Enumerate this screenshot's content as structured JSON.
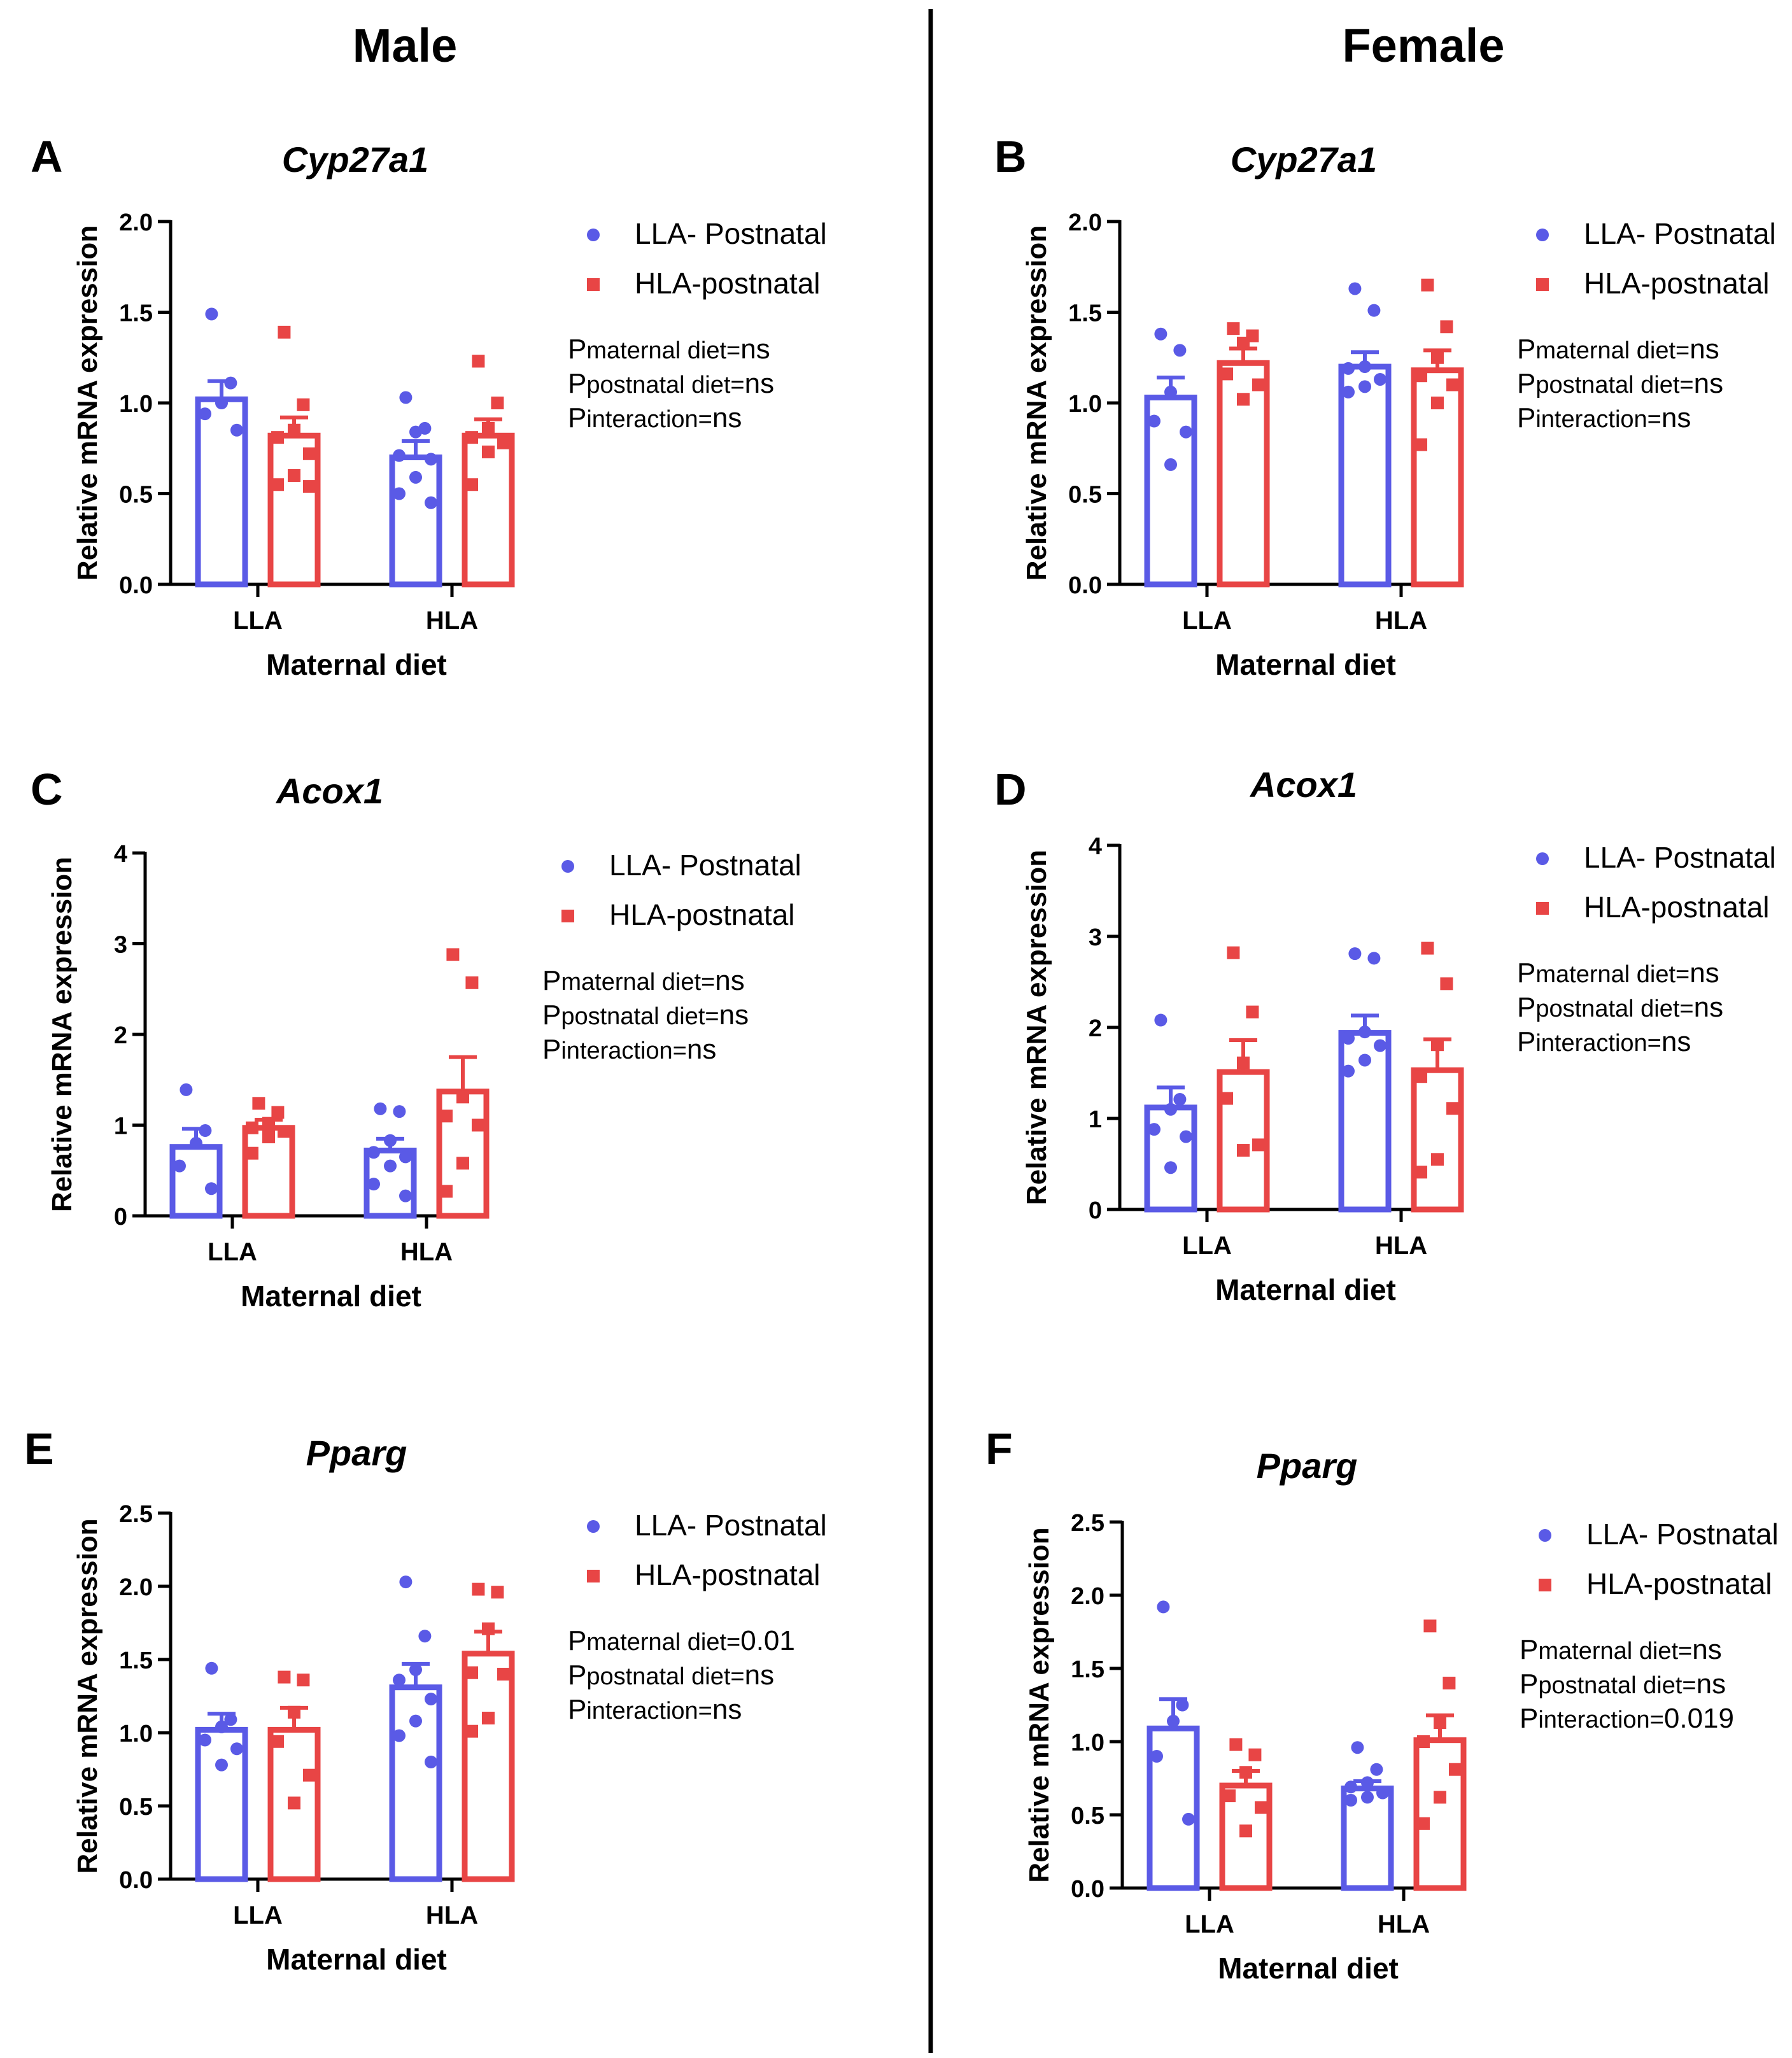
{
  "column_titles": {
    "male": "Male",
    "female": "Female"
  },
  "legend": {
    "series1": "LLA- Postnatal",
    "series2": "HLA-postnatal"
  },
  "colors": {
    "series1": "#5a5ae6",
    "series2": "#e84545",
    "axis": "#000000"
  },
  "chart_data": [
    {
      "panel": "A",
      "sex": "Male",
      "type": "bar",
      "title": "Cyp27a1",
      "xlabel": "Maternal diet",
      "ylabel": "Relative mRNA expression",
      "categories": [
        "LLA",
        "HLA"
      ],
      "ylim": [
        0,
        2.0
      ],
      "yticks": [
        "0.0",
        "0.5",
        "1.0",
        "1.5",
        "2.0"
      ],
      "series": [
        {
          "name": "LLA- Postnatal",
          "values": [
            1.02,
            0.7
          ],
          "sem": [
            0.1,
            0.09
          ],
          "points": [
            [
              1.49,
              1.11,
              1.0,
              0.94,
              0.85
            ],
            [
              1.03,
              0.86,
              0.84,
              0.71,
              0.69,
              0.59,
              0.5,
              0.45
            ]
          ]
        },
        {
          "name": "HLA-postnatal",
          "values": [
            0.82,
            0.82
          ],
          "sem": [
            0.1,
            0.09
          ],
          "points": [
            [
              1.39,
              0.99,
              0.85,
              0.81,
              0.72,
              0.6,
              0.55,
              0.54
            ],
            [
              1.23,
              1.0,
              0.86,
              0.81,
              0.78,
              0.73,
              0.55
            ]
          ]
        }
      ],
      "stats": [
        {
          "p": "P",
          "sub": "maternal diet=",
          "val": "ns"
        },
        {
          "p": "P",
          "sub": "postnatal diet=",
          "val": "ns"
        },
        {
          "p": "P",
          "sub": "interaction=",
          "val": "ns"
        }
      ]
    },
    {
      "panel": "B",
      "sex": "Female",
      "type": "bar",
      "title": "Cyp27a1",
      "xlabel": "Maternal diet",
      "ylabel": "Relative mRNA expression",
      "categories": [
        "LLA",
        "HLA"
      ],
      "ylim": [
        0,
        2.0
      ],
      "yticks": [
        "0.0",
        "0.5",
        "1.0",
        "1.5",
        "2.0"
      ],
      "series": [
        {
          "name": "LLA- Postnatal",
          "values": [
            1.03,
            1.2
          ],
          "sem": [
            0.11,
            0.08
          ],
          "points": [
            [
              1.38,
              1.29,
              1.06,
              0.9,
              0.84,
              0.66
            ],
            [
              1.63,
              1.51,
              1.2,
              1.19,
              1.13,
              1.09,
              1.06
            ]
          ]
        },
        {
          "name": "HLA-postnatal",
          "values": [
            1.22,
            1.18
          ],
          "sem": [
            0.08,
            0.11
          ],
          "points": [
            [
              1.41,
              1.37,
              1.33,
              1.16,
              1.1,
              1.02
            ],
            [
              1.65,
              1.42,
              1.25,
              1.15,
              1.1,
              1.0,
              0.77
            ]
          ]
        }
      ],
      "stats": [
        {
          "p": "P",
          "sub": "maternal diet=",
          "val": "ns"
        },
        {
          "p": "P",
          "sub": "postnatal diet=",
          "val": "ns"
        },
        {
          "p": "P",
          "sub": "interaction=",
          "val": "ns"
        }
      ]
    },
    {
      "panel": "C",
      "sex": "Male",
      "type": "bar",
      "title": "Acox1",
      "xlabel": "Maternal diet",
      "ylabel": "Relative mRNA expression",
      "categories": [
        "LLA",
        "HLA"
      ],
      "ylim": [
        0,
        4
      ],
      "yticks": [
        "0",
        "1",
        "2",
        "3",
        "4"
      ],
      "series": [
        {
          "name": "LLA- Postnatal",
          "values": [
            0.76,
            0.72
          ],
          "sem": [
            0.2,
            0.13
          ],
          "points": [
            [
              1.39,
              0.94,
              0.8,
              0.55,
              0.3
            ],
            [
              1.18,
              1.15,
              0.83,
              0.7,
              0.65,
              0.55,
              0.35,
              0.22
            ]
          ]
        },
        {
          "name": "HLA-postnatal",
          "values": [
            0.97,
            1.37
          ],
          "sem": [
            0.09,
            0.38
          ],
          "points": [
            [
              1.24,
              1.14,
              1.02,
              0.97,
              0.93,
              0.87,
              0.69
            ],
            [
              2.88,
              2.57,
              1.31,
              1.1,
              1.0,
              0.58,
              0.27
            ]
          ]
        }
      ],
      "stats": [
        {
          "p": "P",
          "sub": "maternal diet=",
          "val": "ns"
        },
        {
          "p": "P",
          "sub": "postnatal diet=",
          "val": "ns"
        },
        {
          "p": "P",
          "sub": "interaction=",
          "val": "ns"
        }
      ]
    },
    {
      "panel": "D",
      "sex": "Female",
      "type": "bar",
      "title": "Acox1",
      "xlabel": "Maternal diet",
      "ylabel": "Relative mRNA expression",
      "categories": [
        "LLA",
        "HLA"
      ],
      "ylim": [
        0,
        4
      ],
      "yticks": [
        "0",
        "1",
        "2",
        "3",
        "4"
      ],
      "series": [
        {
          "name": "LLA- Postnatal",
          "values": [
            1.12,
            1.94
          ],
          "sem": [
            0.22,
            0.19
          ],
          "points": [
            [
              2.08,
              1.21,
              1.1,
              0.88,
              0.8,
              0.46
            ],
            [
              2.81,
              2.76,
              1.95,
              1.88,
              1.8,
              1.64,
              1.52
            ]
          ]
        },
        {
          "name": "HLA-postnatal",
          "values": [
            1.51,
            1.53
          ],
          "sem": [
            0.35,
            0.34
          ],
          "points": [
            [
              2.82,
              2.17,
              1.61,
              1.22,
              0.71,
              0.65
            ],
            [
              2.87,
              2.48,
              1.81,
              1.46,
              1.11,
              0.55,
              0.41
            ]
          ]
        }
      ],
      "stats": [
        {
          "p": "P",
          "sub": "maternal diet=",
          "val": "ns"
        },
        {
          "p": "P",
          "sub": "postnatal diet=",
          "val": "ns"
        },
        {
          "p": "P",
          "sub": "interaction=",
          "val": "ns"
        }
      ]
    },
    {
      "panel": "E",
      "sex": "Male",
      "type": "bar",
      "title": "Pparg",
      "xlabel": "Maternal diet",
      "ylabel": "Relative mRNA expression",
      "categories": [
        "LLA",
        "HLA"
      ],
      "ylim": [
        0,
        2.5
      ],
      "yticks": [
        "0.0",
        "0.5",
        "1.0",
        "1.5",
        "2.0",
        "2.5"
      ],
      "series": [
        {
          "name": "LLA- Postnatal",
          "values": [
            1.02,
            1.31
          ],
          "sem": [
            0.11,
            0.16
          ],
          "points": [
            [
              1.44,
              1.09,
              1.04,
              0.95,
              0.89,
              0.78
            ],
            [
              2.03,
              1.66,
              1.43,
              1.36,
              1.23,
              1.08,
              0.98,
              0.8
            ]
          ]
        },
        {
          "name": "HLA-postnatal",
          "values": [
            1.02,
            1.54
          ],
          "sem": [
            0.15,
            0.15
          ],
          "points": [
            [
              1.38,
              1.36,
              1.14,
              0.94,
              0.71,
              0.52
            ],
            [
              1.98,
              1.96,
              1.71,
              1.41,
              1.4,
              1.1,
              1.01
            ]
          ]
        }
      ],
      "stats": [
        {
          "p": "P",
          "sub": "maternal diet=",
          "val": "0.01"
        },
        {
          "p": "P",
          "sub": "postnatal diet=",
          "val": "ns"
        },
        {
          "p": "P",
          "sub": "interaction=",
          "val": "ns"
        }
      ]
    },
    {
      "panel": "F",
      "sex": "Female",
      "type": "bar",
      "title": "Pparg",
      "xlabel": "Maternal diet",
      "ylabel": "Relative mRNA expression",
      "categories": [
        "LLA",
        "HLA"
      ],
      "ylim": [
        0,
        2.5
      ],
      "yticks": [
        "0.0",
        "0.5",
        "1.0",
        "1.5",
        "2.0",
        "2.5"
      ],
      "series": [
        {
          "name": "LLA- Postnatal",
          "values": [
            1.09,
            0.68
          ],
          "sem": [
            0.2,
            0.05
          ],
          "points": [
            [
              1.92,
              1.25,
              1.14,
              0.9,
              0.47
            ],
            [
              0.96,
              0.81,
              0.72,
              0.69,
              0.65,
              0.62,
              0.6
            ]
          ]
        },
        {
          "name": "HLA-postnatal",
          "values": [
            0.7,
            1.01
          ],
          "sem": [
            0.1,
            0.17
          ],
          "points": [
            [
              0.98,
              0.91,
              0.79,
              0.63,
              0.55,
              0.39
            ],
            [
              1.79,
              1.4,
              1.13,
              1.0,
              0.81,
              0.62,
              0.44
            ]
          ]
        }
      ],
      "stats": [
        {
          "p": "P",
          "sub": "maternal diet=",
          "val": "ns"
        },
        {
          "p": "P",
          "sub": "postnatal diet=",
          "val": "ns"
        },
        {
          "p": "P",
          "sub": "interaction=",
          "val": "0.019"
        }
      ]
    }
  ]
}
